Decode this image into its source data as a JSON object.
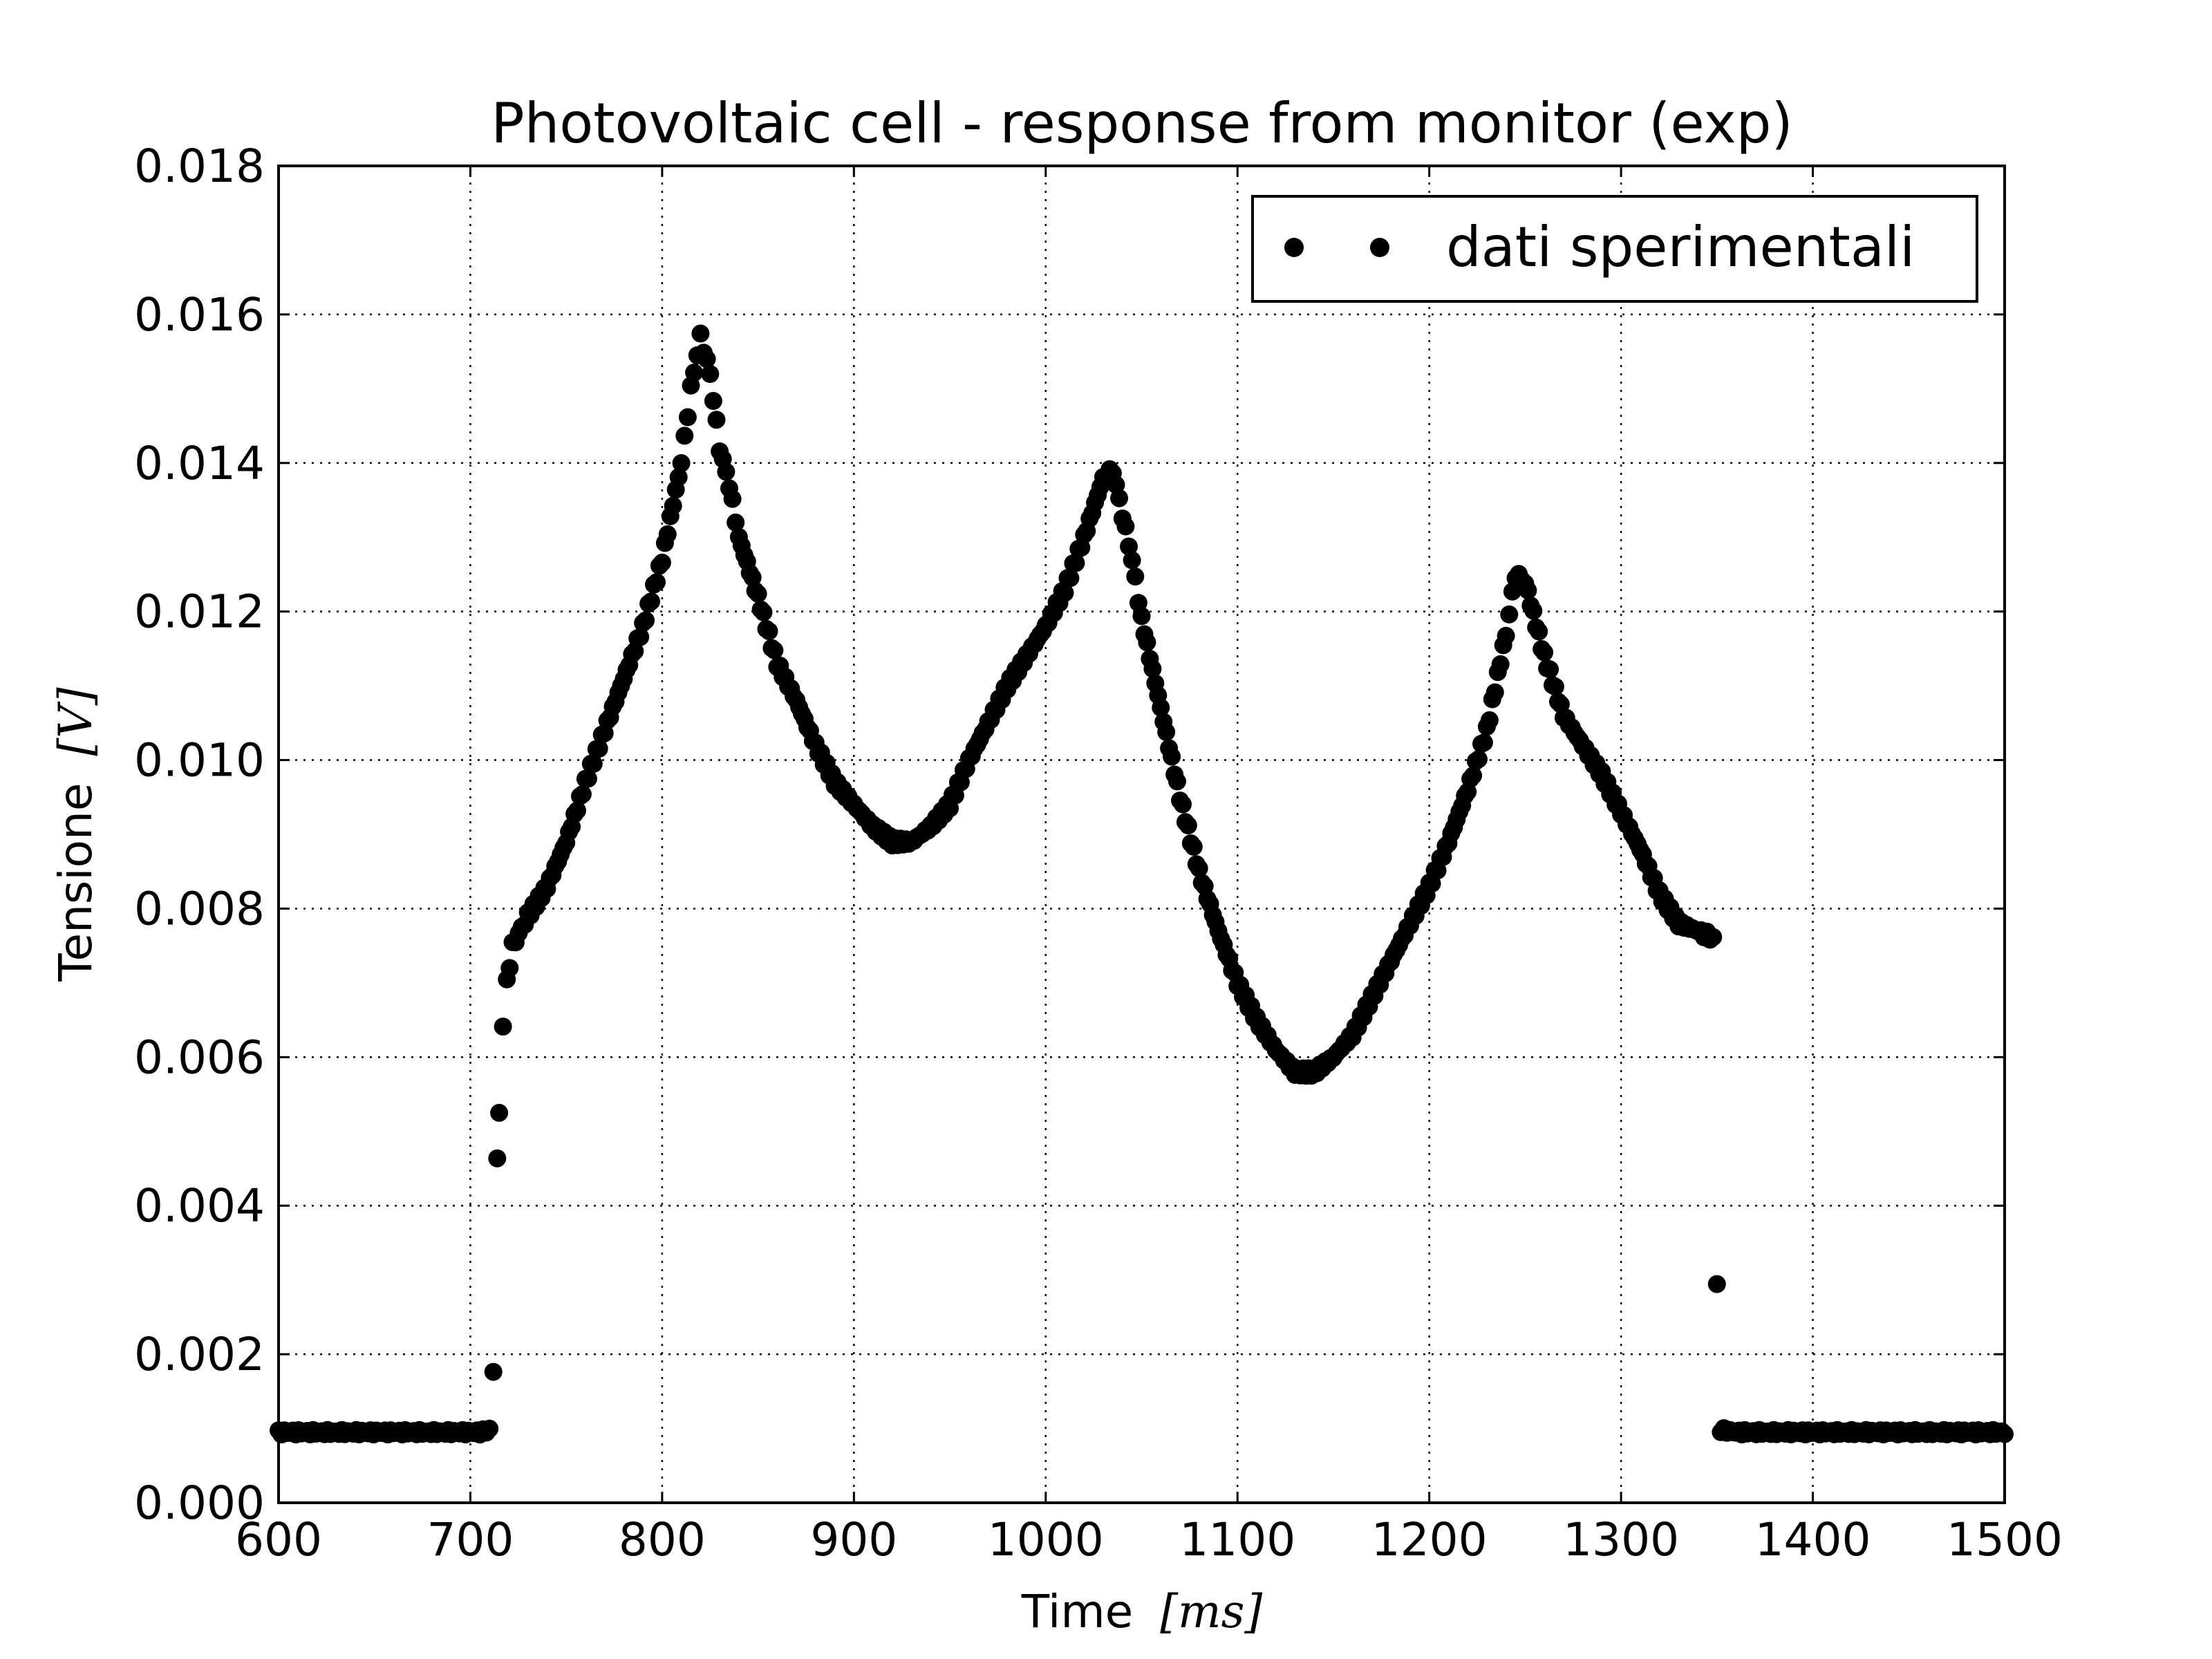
{
  "chart_data": {
    "type": "scatter",
    "title": "Photovoltaic cell - response from monitor (exp)",
    "xlabel": "Time",
    "xlabel_unit": "[ms]",
    "ylabel": "Tensione",
    "ylabel_unit": "[V]",
    "xlim": [
      600,
      1500
    ],
    "ylim": [
      0,
      0.018
    ],
    "xticks": [
      "600",
      "700",
      "800",
      "900",
      "1000",
      "1100",
      "1200",
      "1300",
      "1400",
      "1500"
    ],
    "yticks": [
      "0.000",
      "0.002",
      "0.004",
      "0.006",
      "0.008",
      "0.010",
      "0.012",
      "0.014",
      "0.016",
      "0.018"
    ],
    "grid": true,
    "legend_position": "top-right",
    "colors": {
      "marker": "#000000"
    },
    "series": [
      {
        "name": "dati sperimentali",
        "marker": "circle",
        "points": [
          [
            600,
            0.00095
          ],
          [
            705,
            0.00095
          ],
          [
            710,
            0.00098
          ],
          [
            712,
            0.0018
          ],
          [
            714,
            0.0046
          ],
          [
            715,
            0.0053
          ],
          [
            717,
            0.0064
          ],
          [
            719,
            0.007
          ],
          [
            722,
            0.0075
          ],
          [
            730,
            0.0079
          ],
          [
            740,
            0.0083
          ],
          [
            750,
            0.0089
          ],
          [
            760,
            0.0097
          ],
          [
            770,
            0.0104
          ],
          [
            780,
            0.0111
          ],
          [
            790,
            0.0118
          ],
          [
            800,
            0.0127
          ],
          [
            810,
            0.014
          ],
          [
            815,
            0.015
          ],
          [
            820,
            0.0157
          ],
          [
            825,
            0.0152
          ],
          [
            830,
            0.0142
          ],
          [
            835,
            0.0137
          ],
          [
            840,
            0.013
          ],
          [
            850,
            0.0122
          ],
          [
            860,
            0.0113
          ],
          [
            870,
            0.0108
          ],
          [
            880,
            0.0102
          ],
          [
            890,
            0.0097
          ],
          [
            900,
            0.0094
          ],
          [
            910,
            0.0091
          ],
          [
            920,
            0.0089
          ],
          [
            930,
            0.0089
          ],
          [
            940,
            0.0091
          ],
          [
            950,
            0.0094
          ],
          [
            960,
            0.01
          ],
          [
            970,
            0.0105
          ],
          [
            980,
            0.011
          ],
          [
            990,
            0.0114
          ],
          [
            1000,
            0.0118
          ],
          [
            1010,
            0.0123
          ],
          [
            1020,
            0.013
          ],
          [
            1030,
            0.0138
          ],
          [
            1035,
            0.0139
          ],
          [
            1040,
            0.0133
          ],
          [
            1045,
            0.0127
          ],
          [
            1050,
            0.0119
          ],
          [
            1060,
            0.0107
          ],
          [
            1070,
            0.0095
          ],
          [
            1080,
            0.0085
          ],
          [
            1090,
            0.0077
          ],
          [
            1100,
            0.007
          ],
          [
            1110,
            0.0065
          ],
          [
            1120,
            0.0061
          ],
          [
            1130,
            0.0058
          ],
          [
            1140,
            0.0058
          ],
          [
            1150,
            0.006
          ],
          [
            1160,
            0.0063
          ],
          [
            1170,
            0.0068
          ],
          [
            1180,
            0.0073
          ],
          [
            1190,
            0.0078
          ],
          [
            1200,
            0.0083
          ],
          [
            1210,
            0.0089
          ],
          [
            1220,
            0.0096
          ],
          [
            1230,
            0.0104
          ],
          [
            1240,
            0.0117
          ],
          [
            1245,
            0.0125
          ],
          [
            1250,
            0.0124
          ],
          [
            1260,
            0.0114
          ],
          [
            1270,
            0.0106
          ],
          [
            1280,
            0.0102
          ],
          [
            1290,
            0.0098
          ],
          [
            1300,
            0.0093
          ],
          [
            1310,
            0.0088
          ],
          [
            1320,
            0.0082
          ],
          [
            1330,
            0.0078
          ],
          [
            1340,
            0.0077
          ],
          [
            1348,
            0.0076
          ],
          [
            1350,
            0.0029
          ],
          [
            1352,
            0.00098
          ],
          [
            1360,
            0.00095
          ],
          [
            1500,
            0.00095
          ]
        ]
      }
    ]
  }
}
